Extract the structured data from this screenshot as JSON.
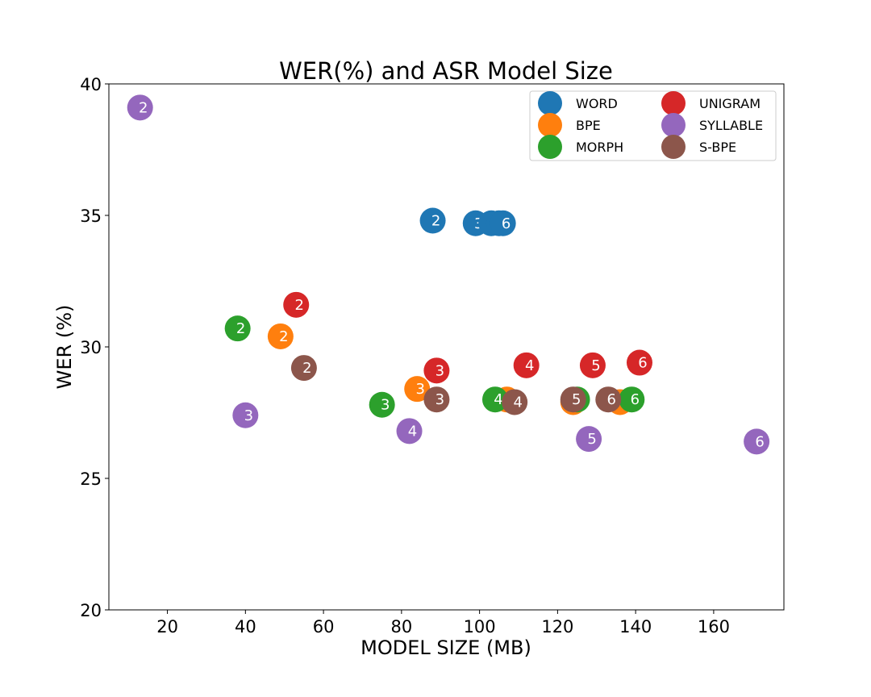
{
  "chart_data": {
    "type": "scatter",
    "title": "WER(%) and ASR Model Size",
    "xlabel": "MODEL SIZE (MB)",
    "ylabel": "WER (%)",
    "xlim": [
      5,
      178
    ],
    "ylim": [
      20,
      40
    ],
    "xticks": [
      20,
      40,
      60,
      80,
      100,
      120,
      140,
      160
    ],
    "yticks": [
      20,
      25,
      30,
      35,
      40
    ],
    "grid": false,
    "legend_position": "top-right",
    "series": [
      {
        "name": "WORD",
        "color": "#1f77b4",
        "points": [
          {
            "x": 88,
            "y": 34.8,
            "label": "2"
          },
          {
            "x": 99,
            "y": 34.7,
            "label": "3"
          },
          {
            "x": 103,
            "y": 34.7,
            "label": "4"
          },
          {
            "x": 105,
            "y": 34.7,
            "label": "5"
          },
          {
            "x": 106,
            "y": 34.7,
            "label": "6"
          }
        ]
      },
      {
        "name": "BPE",
        "color": "#ff7f0e",
        "points": [
          {
            "x": 49,
            "y": 30.4,
            "label": "2"
          },
          {
            "x": 84,
            "y": 28.4,
            "label": "3"
          },
          {
            "x": 107,
            "y": 28.0,
            "label": "4"
          },
          {
            "x": 124,
            "y": 27.9,
            "label": "5"
          },
          {
            "x": 136,
            "y": 27.9,
            "label": "6"
          }
        ]
      },
      {
        "name": "MORPH",
        "color": "#2ca02c",
        "points": [
          {
            "x": 38,
            "y": 30.7,
            "label": "2"
          },
          {
            "x": 75,
            "y": 27.8,
            "label": "3"
          },
          {
            "x": 104,
            "y": 28.0,
            "label": "4"
          },
          {
            "x": 125,
            "y": 28.0,
            "label": "5"
          },
          {
            "x": 139,
            "y": 28.0,
            "label": "6"
          }
        ]
      },
      {
        "name": "UNIGRAM",
        "color": "#d62728",
        "points": [
          {
            "x": 53,
            "y": 31.6,
            "label": "2"
          },
          {
            "x": 89,
            "y": 29.1,
            "label": "3"
          },
          {
            "x": 112,
            "y": 29.3,
            "label": "4"
          },
          {
            "x": 129,
            "y": 29.3,
            "label": "5"
          },
          {
            "x": 141,
            "y": 29.4,
            "label": "6"
          }
        ]
      },
      {
        "name": "SYLLABLE",
        "color": "#9467bd",
        "points": [
          {
            "x": 13,
            "y": 39.1,
            "label": "2"
          },
          {
            "x": 40,
            "y": 27.4,
            "label": "3"
          },
          {
            "x": 82,
            "y": 26.8,
            "label": "4"
          },
          {
            "x": 128,
            "y": 26.5,
            "label": "5"
          },
          {
            "x": 171,
            "y": 26.4,
            "label": "6"
          }
        ]
      },
      {
        "name": "S-BPE",
        "color": "#8c564b",
        "points": [
          {
            "x": 55,
            "y": 29.2,
            "label": "2"
          },
          {
            "x": 89,
            "y": 28.0,
            "label": "3"
          },
          {
            "x": 109,
            "y": 27.9,
            "label": "4"
          },
          {
            "x": 124,
            "y": 28.0,
            "label": "5"
          },
          {
            "x": 133,
            "y": 28.0,
            "label": "6"
          }
        ]
      }
    ]
  }
}
